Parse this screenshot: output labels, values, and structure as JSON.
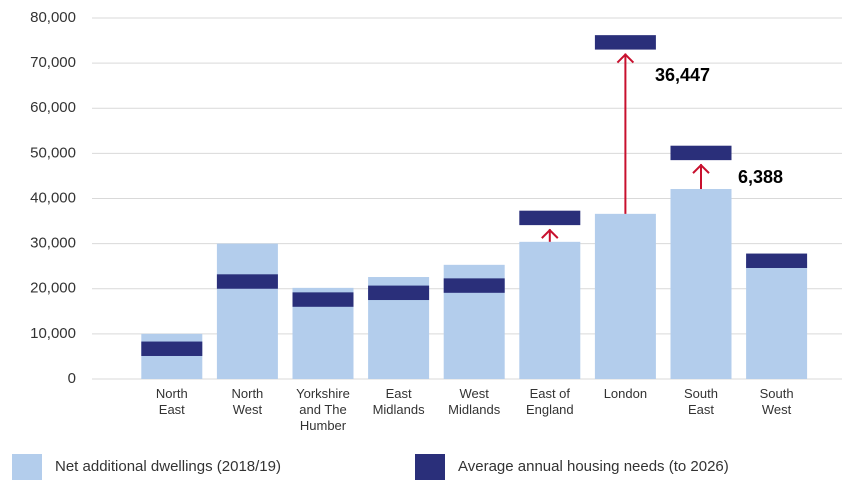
{
  "chart_data": {
    "type": "bar",
    "categories": [
      "North East",
      "North West",
      "Yorkshire and The Humber",
      "East Midlands",
      "West Midlands",
      "East of England",
      "London",
      "South East",
      "South West"
    ],
    "series": [
      {
        "name": "Net additional dwellings (2018/19)",
        "color": "#b3cdec",
        "values": [
          10000,
          30000,
          20200,
          22600,
          25300,
          30400,
          36600,
          42100,
          26000
        ]
      },
      {
        "name": "Average annual housing needs (to 2026)",
        "color": "#2a2f7a",
        "values": [
          5100,
          20000,
          16000,
          17500,
          19100,
          34100,
          73000,
          48500,
          24600
        ]
      }
    ],
    "ylim": [
      0,
      80000
    ],
    "yticks": [
      0,
      {
        "value": 10000,
        "label": "10,000"
      },
      {
        "value": 20000,
        "label": "20,000"
      },
      {
        "value": 30000,
        "label": "30,000"
      },
      {
        "value": 40000,
        "label": "40,000"
      },
      {
        "value": 50000,
        "label": "50,000"
      },
      {
        "value": 60000,
        "label": "60,000"
      },
      {
        "value": 70000,
        "label": "70,000"
      },
      {
        "value": 80000,
        "label": "80,000"
      }
    ],
    "grid": true,
    "annotations": [
      "36,447",
      "6,388"
    ],
    "arrow_color": "#c8102e"
  }
}
